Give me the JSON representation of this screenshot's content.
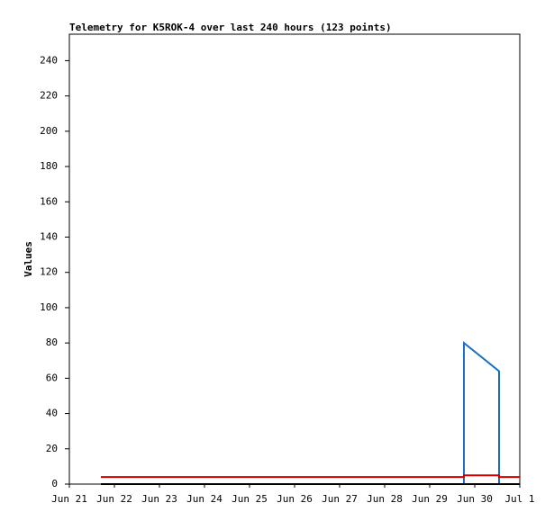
{
  "chart_data": {
    "type": "line",
    "title": "Telemetry for K5ROK-4 over last 240 hours (123 points)",
    "y_label": "Values",
    "xlim": [
      21,
      31
    ],
    "ylim": [
      0,
      255
    ],
    "xticks": [
      {
        "value": 21,
        "label": "Jun 21"
      },
      {
        "value": 22,
        "label": "Jun 22"
      },
      {
        "value": 23,
        "label": "Jun 23"
      },
      {
        "value": 24,
        "label": "Jun 24"
      },
      {
        "value": 25,
        "label": "Jun 25"
      },
      {
        "value": 26,
        "label": "Jun 26"
      },
      {
        "value": 27,
        "label": "Jun 27"
      },
      {
        "value": 28,
        "label": "Jun 28"
      },
      {
        "value": 29,
        "label": "Jun 29"
      },
      {
        "value": 30,
        "label": "Jun 30"
      },
      {
        "value": 31,
        "label": "Jul 1"
      }
    ],
    "yticks": [
      0,
      20,
      40,
      60,
      80,
      100,
      120,
      140,
      160,
      180,
      200,
      220,
      240
    ],
    "series": [
      {
        "color": "#1a6fc4",
        "x": [
          21.7,
          29.76,
          29.76,
          30.54,
          30.54,
          31
        ],
        "values": [
          0,
          0,
          80,
          64,
          0,
          0
        ]
      },
      {
        "color": "#d00000",
        "x": [
          21.7,
          29.76,
          29.76,
          30.54,
          30.54,
          31
        ],
        "values": [
          4,
          4,
          5,
          5,
          4,
          4
        ]
      },
      {
        "color": "#000000",
        "x": [
          21.7,
          31
        ],
        "values": [
          0,
          0
        ]
      }
    ]
  }
}
